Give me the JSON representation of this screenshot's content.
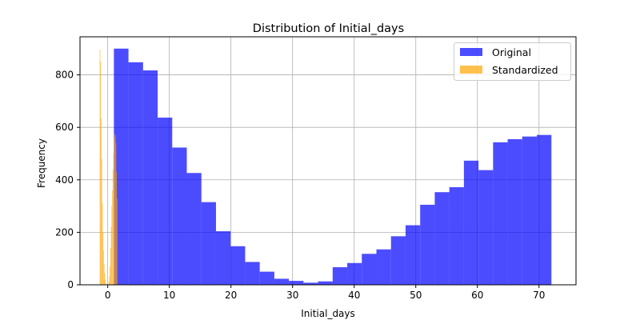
{
  "chart_data": {
    "type": "histogram",
    "title": "Distribution of Initial_days",
    "xlabel": "Initial_days",
    "ylabel": "Frequency",
    "xlim": [
      -4.5,
      76
    ],
    "ylim": [
      0,
      945
    ],
    "xticks": [
      0,
      10,
      20,
      30,
      40,
      50,
      60,
      70
    ],
    "yticks": [
      0,
      200,
      400,
      600,
      800
    ],
    "grid": true,
    "legend_position": "top-right",
    "series": [
      {
        "name": "Original",
        "color": "#0000ff",
        "alpha": 0.7,
        "bin_start": 1.0,
        "bin_width": 2.367,
        "values": [
          900,
          848,
          817,
          637,
          523,
          426,
          315,
          204,
          147,
          87,
          50,
          23,
          15,
          8,
          13,
          67,
          83,
          118,
          135,
          185,
          227,
          305,
          353,
          372,
          473,
          437,
          543,
          555,
          565,
          571
        ]
      },
      {
        "name": "Standardized",
        "color": "#ffa500",
        "alpha": 0.7,
        "bin_start": -1.3,
        "bin_width": 0.0957,
        "values": [
          897,
          850,
          635,
          480,
          310,
          200,
          130,
          80,
          45,
          20,
          5,
          2,
          1,
          0,
          2,
          10,
          30,
          70,
          140,
          220,
          300,
          360,
          440,
          500,
          560,
          575,
          570,
          540,
          430,
          330
        ]
      }
    ]
  }
}
